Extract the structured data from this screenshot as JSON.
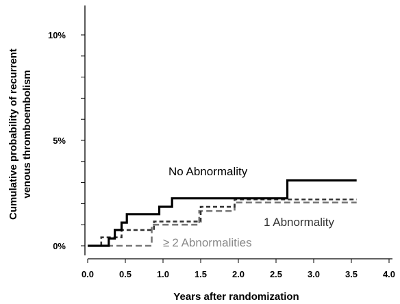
{
  "chart_data": {
    "type": "line",
    "step": true,
    "xlabel": "Years after randomization",
    "ylabel_lines": [
      "Cumulative probability of recurrent",
      "venous thromboembolism"
    ],
    "xlim": [
      0,
      4.0
    ],
    "ylim": [
      0,
      10
    ],
    "x_ticks": [
      "0.0",
      "0.5",
      "1.0",
      "1.5",
      "2.0",
      "2.5",
      "3.0",
      "3.5",
      "4.0"
    ],
    "y_ticks": [
      {
        "value": 0,
        "label": "0%"
      },
      {
        "value": 5,
        "label": "5%"
      },
      {
        "value": 10,
        "label": "10%"
      }
    ],
    "y_minor_ticks": [
      1,
      2,
      3,
      4,
      6,
      7,
      8,
      9
    ],
    "grid": false,
    "series": [
      {
        "name": "No Abnormality",
        "color": "#000000",
        "dash": "solid",
        "x": [
          0.0,
          0.28,
          0.36,
          0.45,
          0.52,
          0.95,
          1.12,
          2.65,
          3.57
        ],
        "y": [
          0.0,
          0.35,
          0.75,
          1.1,
          1.5,
          1.85,
          2.25,
          3.1,
          3.1
        ]
      },
      {
        "name": "1 Abnormality",
        "color": "#333333",
        "dash": "dashed",
        "x": [
          0.0,
          0.18,
          0.45,
          0.88,
          1.5,
          1.95,
          3.57
        ],
        "y": [
          0.0,
          0.4,
          0.75,
          1.15,
          1.85,
          2.2,
          2.2
        ]
      },
      {
        "name": "≥ 2 Abnormalities",
        "color": "#777777",
        "dash": "dashed",
        "x": [
          0.0,
          0.85,
          1.48,
          1.95,
          3.57
        ],
        "y": [
          0.0,
          1.0,
          1.65,
          2.05,
          2.05
        ]
      }
    ],
    "annotations": [
      {
        "text": "No Abnormality",
        "color": "#000000"
      },
      {
        "text": "1 Abnormality",
        "color": "#333333"
      },
      {
        "prefix": "≥",
        "text": "2 Abnormalities",
        "color": "#888888"
      }
    ]
  }
}
